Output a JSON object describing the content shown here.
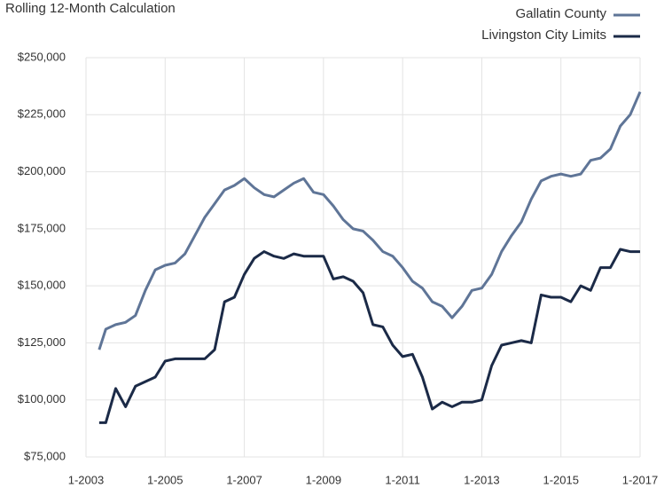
{
  "chart_data": {
    "type": "line",
    "title": "Rolling 12-Month Calculation",
    "x": [
      "5-2003",
      "7-2003",
      "10-2003",
      "1-2004",
      "4-2004",
      "7-2004",
      "10-2004",
      "1-2005",
      "4-2005",
      "7-2005",
      "10-2005",
      "1-2006",
      "4-2006",
      "7-2006",
      "10-2006",
      "1-2007",
      "4-2007",
      "7-2007",
      "10-2007",
      "1-2008",
      "4-2008",
      "7-2008",
      "10-2008",
      "1-2009",
      "4-2009",
      "7-2009",
      "10-2009",
      "1-2010",
      "4-2010",
      "7-2010",
      "10-2010",
      "1-2011",
      "4-2011",
      "7-2011",
      "10-2011",
      "1-2012",
      "4-2012",
      "7-2012",
      "10-2012",
      "1-2013",
      "4-2013",
      "7-2013",
      "10-2013",
      "1-2014",
      "4-2014",
      "7-2014",
      "10-2014",
      "1-2015",
      "4-2015",
      "7-2015",
      "10-2015",
      "1-2016",
      "4-2016",
      "7-2016",
      "10-2016",
      "1-2017"
    ],
    "series": [
      {
        "name": "Gallatin County",
        "color": "#5f7597",
        "values": [
          122000,
          131000,
          133000,
          134000,
          137000,
          148000,
          157000,
          159000,
          160000,
          164000,
          172000,
          180000,
          186000,
          192000,
          194000,
          197000,
          193000,
          190000,
          189000,
          192000,
          195000,
          197000,
          191000,
          190000,
          185000,
          179000,
          175000,
          174000,
          170000,
          165000,
          163000,
          158000,
          152000,
          149000,
          143000,
          141000,
          136000,
          141000,
          148000,
          149000,
          155000,
          165000,
          172000,
          178000,
          188000,
          196000,
          198000,
          199000,
          198000,
          199000,
          205000,
          206000,
          210000,
          220000,
          225000,
          235000
        ]
      },
      {
        "name": "Livingston City Limits",
        "color": "#1b2a47",
        "values": [
          90000,
          90000,
          105000,
          97000,
          106000,
          108000,
          110000,
          117000,
          118000,
          118000,
          118000,
          118000,
          122000,
          143000,
          145000,
          155000,
          162000,
          165000,
          163000,
          162000,
          164000,
          163000,
          163000,
          163000,
          153000,
          154000,
          152000,
          147000,
          133000,
          132000,
          124000,
          119000,
          120000,
          110000,
          96000,
          99000,
          97000,
          99000,
          99000,
          100000,
          115000,
          124000,
          125000,
          126000,
          125000,
          146000,
          145000,
          145000,
          143000,
          150000,
          148000,
          158000,
          158000,
          166000,
          165000,
          165000
        ]
      }
    ],
    "xlim": [
      "1-2003",
      "1-2017"
    ],
    "xticks": [
      "1-2003",
      "1-2005",
      "1-2007",
      "1-2009",
      "1-2011",
      "1-2013",
      "1-2015",
      "1-2017"
    ],
    "ylim": [
      75000,
      250000
    ],
    "yticks": [
      {
        "value": 75000,
        "label": "$75,000"
      },
      {
        "value": 100000,
        "label": "$100,000"
      },
      {
        "value": 125000,
        "label": "$125,000"
      },
      {
        "value": 150000,
        "label": "$150,000"
      },
      {
        "value": 175000,
        "label": "$175,000"
      },
      {
        "value": 200000,
        "label": "$200,000"
      },
      {
        "value": 225000,
        "label": "$225,000"
      },
      {
        "value": 250000,
        "label": "$250,000"
      }
    ],
    "grid": true,
    "legend": "top-right"
  }
}
